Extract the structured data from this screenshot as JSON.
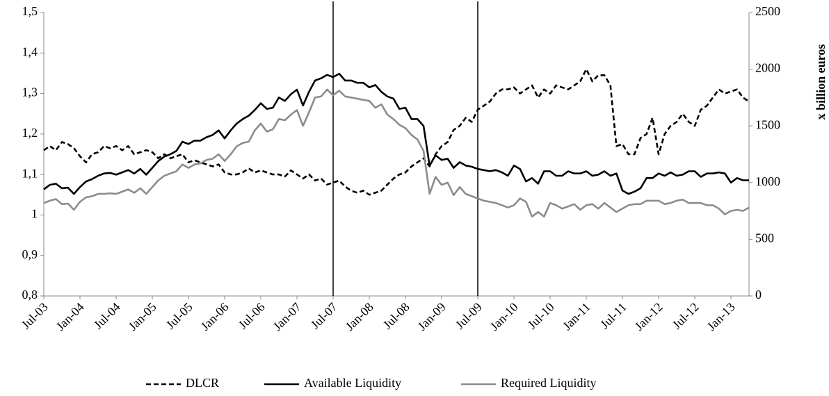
{
  "chart_data": {
    "type": "line",
    "y2label": "x billion euros",
    "categories": [
      "Jul-03",
      null,
      null,
      null,
      null,
      null,
      "Jan-04",
      null,
      null,
      null,
      null,
      null,
      "Jul-04",
      null,
      null,
      null,
      null,
      null,
      "Jan-05",
      null,
      null,
      null,
      null,
      null,
      "Jul-05",
      null,
      null,
      null,
      null,
      null,
      "Jan-06",
      null,
      null,
      null,
      null,
      null,
      "Jul-06",
      null,
      null,
      null,
      null,
      null,
      "Jan-07",
      null,
      null,
      null,
      null,
      null,
      "Jul-07",
      null,
      null,
      null,
      null,
      null,
      "Jan-08",
      null,
      null,
      null,
      null,
      null,
      "Jul-08",
      null,
      null,
      null,
      null,
      null,
      "Jan-09",
      null,
      null,
      null,
      null,
      null,
      "Jul-09",
      null,
      null,
      null,
      null,
      null,
      "Jan-10",
      null,
      null,
      null,
      null,
      null,
      "Jul-10",
      null,
      null,
      null,
      null,
      null,
      "Jan-11",
      null,
      null,
      null,
      null,
      null,
      "Jul-11",
      null,
      null,
      null,
      null,
      null,
      "Jan-12",
      null,
      null,
      null,
      null,
      null,
      "Jul-12",
      null,
      null,
      null,
      null,
      null,
      "Jan-13",
      null,
      null,
      null
    ],
    "vlines": [
      "Jul-07",
      "Jul-09"
    ],
    "series": [
      {
        "name": "DLCR",
        "color": "#000000",
        "dashed": true,
        "axis": "y",
        "values": [
          1.16,
          1.17,
          1.16,
          1.18,
          1.175,
          1.165,
          1.145,
          1.13,
          1.15,
          1.155,
          1.17,
          1.165,
          1.17,
          1.16,
          1.17,
          1.15,
          1.155,
          1.16,
          1.155,
          1.14,
          1.15,
          1.14,
          1.145,
          1.15,
          1.13,
          1.135,
          1.13,
          1.125,
          1.12,
          1.125,
          1.105,
          1.1,
          1.1,
          1.105,
          1.115,
          1.105,
          1.11,
          1.105,
          1.1,
          1.1,
          1.095,
          1.11,
          1.1,
          1.09,
          1.1,
          1.085,
          1.09,
          1.075,
          1.08,
          1.085,
          1.07,
          1.06,
          1.055,
          1.06,
          1.05,
          1.055,
          1.06,
          1.075,
          1.09,
          1.1,
          1.105,
          1.12,
          1.13,
          1.14,
          1.12,
          1.15,
          1.17,
          1.18,
          1.21,
          1.22,
          1.24,
          1.23,
          1.26,
          1.27,
          1.28,
          1.3,
          1.31,
          1.31,
          1.315,
          1.3,
          1.31,
          1.32,
          1.29,
          1.31,
          1.3,
          1.32,
          1.315,
          1.31,
          1.32,
          1.33,
          1.36,
          1.33,
          1.345,
          1.345,
          1.32,
          1.17,
          1.175,
          1.15,
          1.15,
          1.19,
          1.2,
          1.24,
          1.15,
          1.2,
          1.22,
          1.23,
          1.25,
          1.23,
          1.22,
          1.26,
          1.27,
          1.29,
          1.31,
          1.3,
          1.305,
          1.31,
          1.29,
          1.28
        ]
      },
      {
        "name": "Available Liquidity",
        "color": "#000000",
        "dashed": false,
        "axis": "y2",
        "values": [
          940,
          980,
          990,
          950,
          955,
          900,
          960,
          1010,
          1030,
          1060,
          1080,
          1085,
          1070,
          1090,
          1110,
          1080,
          1120,
          1070,
          1130,
          1190,
          1230,
          1250,
          1280,
          1360,
          1340,
          1370,
          1370,
          1400,
          1420,
          1460,
          1390,
          1460,
          1520,
          1560,
          1590,
          1640,
          1700,
          1650,
          1660,
          1750,
          1720,
          1780,
          1820,
          1680,
          1800,
          1900,
          1920,
          1950,
          1930,
          1960,
          1900,
          1900,
          1880,
          1880,
          1840,
          1860,
          1800,
          1760,
          1740,
          1650,
          1660,
          1560,
          1560,
          1500,
          1150,
          1240,
          1200,
          1210,
          1130,
          1180,
          1150,
          1140,
          1120,
          1110,
          1100,
          1110,
          1090,
          1060,
          1150,
          1120,
          1010,
          1040,
          990,
          1100,
          1100,
          1060,
          1060,
          1100,
          1080,
          1080,
          1100,
          1060,
          1070,
          1100,
          1060,
          1080,
          930,
          900,
          920,
          950,
          1040,
          1040,
          1080,
          1060,
          1090,
          1060,
          1070,
          1100,
          1100,
          1050,
          1080,
          1080,
          1090,
          1080,
          1000,
          1040,
          1020,
          1020
        ]
      },
      {
        "name": "Required Liquidity",
        "color": "#8c8c8c",
        "dashed": false,
        "axis": "y2",
        "values": [
          820,
          840,
          855,
          810,
          815,
          760,
          830,
          870,
          880,
          900,
          900,
          905,
          900,
          920,
          940,
          910,
          950,
          900,
          960,
          1020,
          1060,
          1080,
          1100,
          1160,
          1130,
          1160,
          1170,
          1200,
          1210,
          1250,
          1190,
          1250,
          1320,
          1350,
          1360,
          1460,
          1520,
          1450,
          1470,
          1560,
          1550,
          1600,
          1640,
          1500,
          1620,
          1750,
          1760,
          1820,
          1770,
          1810,
          1760,
          1750,
          1740,
          1730,
          1720,
          1660,
          1690,
          1600,
          1560,
          1510,
          1480,
          1420,
          1380,
          1280,
          900,
          1050,
          980,
          1000,
          890,
          960,
          900,
          880,
          860,
          840,
          830,
          820,
          800,
          780,
          800,
          860,
          830,
          700,
          740,
          700,
          820,
          800,
          770,
          790,
          810,
          760,
          800,
          810,
          770,
          820,
          780,
          740,
          770,
          800,
          810,
          810,
          840,
          840,
          840,
          810,
          820,
          840,
          850,
          820,
          820,
          820,
          800,
          800,
          770,
          720,
          750,
          760,
          750,
          780
        ]
      }
    ],
    "ylim": [
      0.8,
      1.5
    ],
    "yticks": [
      {
        "value": 0.8,
        "label": "0,8"
      },
      {
        "value": 0.9,
        "label": "0,9"
      },
      1,
      {
        "value": 1.1,
        "label": "1,1"
      },
      {
        "value": 1.2,
        "label": "1,2"
      },
      {
        "value": 1.3,
        "label": "1,3"
      },
      {
        "value": 1.4,
        "label": "1,4"
      },
      {
        "value": 1.5,
        "label": "1,5"
      }
    ],
    "y2lim": [
      0,
      2500
    ],
    "y2ticks": [
      0,
      500,
      1000,
      1500,
      2000,
      2500
    ],
    "grid": false,
    "legend": "bottom"
  }
}
